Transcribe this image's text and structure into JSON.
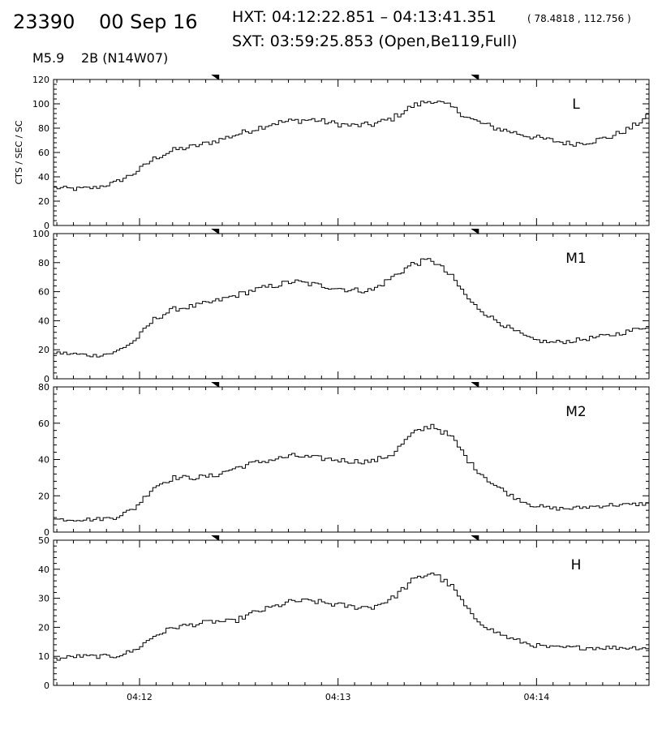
{
  "header": {
    "event_id": "23390",
    "date": "00 Sep 16",
    "hxt": "HXT: 04:12:22.851 – 04:13:41.351",
    "coords": "( 78.4818 , 112.756 )",
    "sxt": "SXT: 03:59:25.853 (Open,Be119,Full)",
    "goes_class": "M5.9",
    "flare": "2B (N14W07)"
  },
  "chart_data": {
    "type": "line",
    "ylabel": "CTS / SEC / SC",
    "x_ticks": [
      "04:12",
      "04:13",
      "04:14"
    ],
    "x_tick_seconds": [
      720,
      780,
      840
    ],
    "xlim_seconds": [
      694,
      874
    ],
    "markers_seconds": [
      742.85,
      821.35
    ],
    "panels": [
      {
        "name": "L",
        "ylim": [
          0,
          120
        ],
        "yticks": [
          "0",
          "20",
          "40",
          "60",
          "80",
          "100",
          "120"
        ],
        "x": [
          694,
          700,
          706,
          712,
          718,
          724,
          730,
          736,
          742,
          748,
          754,
          760,
          766,
          772,
          778,
          784,
          790,
          796,
          802,
          808,
          814,
          820,
          826,
          832,
          838,
          844,
          850,
          856,
          862,
          868,
          874
        ],
        "values": [
          31,
          30,
          31,
          35,
          43,
          55,
          62,
          65,
          69,
          74,
          79,
          84,
          86,
          87,
          84,
          82,
          83,
          88,
          98,
          103,
          97,
          87,
          81,
          77,
          73,
          70,
          67,
          69,
          73,
          80,
          91
        ]
      },
      {
        "name": "M1",
        "ylim": [
          0,
          100
        ],
        "yticks": [
          "0",
          "20",
          "40",
          "60",
          "80",
          "100"
        ],
        "x": [
          694,
          700,
          706,
          712,
          718,
          724,
          730,
          736,
          742,
          748,
          754,
          760,
          766,
          772,
          778,
          784,
          790,
          796,
          802,
          808,
          814,
          820,
          826,
          832,
          838,
          844,
          850,
          856,
          862,
          868,
          874
        ],
        "values": [
          18,
          17,
          16,
          18,
          26,
          41,
          48,
          50,
          53,
          57,
          61,
          64,
          67,
          65,
          63,
          61,
          61,
          70,
          79,
          82,
          70,
          52,
          42,
          34,
          27,
          25,
          26,
          28,
          30,
          33,
          37
        ]
      },
      {
        "name": "M2",
        "ylim": [
          0,
          80
        ],
        "yticks": [
          "0",
          "20",
          "40",
          "60",
          "80"
        ],
        "x": [
          694,
          700,
          706,
          712,
          718,
          724,
          730,
          736,
          742,
          748,
          754,
          760,
          766,
          772,
          778,
          784,
          790,
          796,
          802,
          808,
          814,
          820,
          826,
          832,
          838,
          844,
          850,
          856,
          862,
          868,
          874
        ],
        "values": [
          7,
          7,
          7,
          8,
          13,
          25,
          30,
          30,
          31,
          35,
          38,
          40,
          42,
          41,
          40,
          39,
          39,
          43,
          54,
          59,
          52,
          37,
          27,
          20,
          15,
          13,
          13,
          14,
          15,
          15,
          16
        ]
      },
      {
        "name": "H",
        "ylim": [
          0,
          50
        ],
        "yticks": [
          "0",
          "10",
          "20",
          "30",
          "40",
          "50"
        ],
        "x": [
          694,
          700,
          706,
          712,
          718,
          724,
          730,
          736,
          742,
          748,
          754,
          760,
          766,
          772,
          778,
          784,
          790,
          796,
          802,
          808,
          814,
          820,
          826,
          832,
          838,
          844,
          850,
          856,
          862,
          868,
          874
        ],
        "values": [
          9,
          10,
          10,
          10,
          12,
          17,
          20,
          21,
          22,
          22,
          25,
          27,
          29,
          29,
          28,
          27,
          27,
          30,
          36,
          39,
          34,
          24,
          19,
          16,
          14,
          13,
          13,
          13,
          13,
          13,
          13
        ]
      }
    ]
  }
}
